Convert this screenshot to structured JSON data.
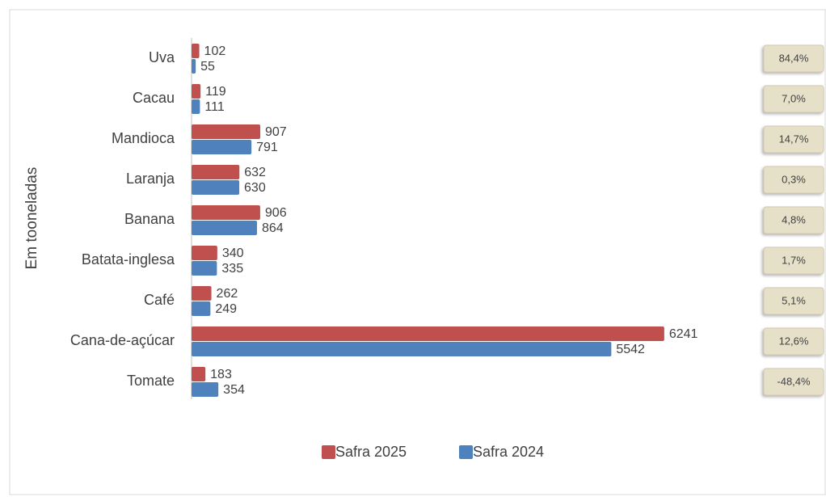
{
  "chart_data": {
    "type": "bar",
    "orientation": "horizontal",
    "y_label": "Em tooneladas",
    "categories": [
      "Uva",
      "Cacau",
      "Mandioca",
      "Laranja",
      "Banana",
      "Batata-inglesa",
      "Café",
      "Cana-de-açúcar",
      "Tomate"
    ],
    "series": [
      {
        "name": "Safra 2025",
        "color": "#c0504d",
        "values": [
          102,
          119,
          907,
          632,
          906,
          340,
          262,
          6241,
          183
        ]
      },
      {
        "name": "Safra 2024",
        "color": "#4f81bd",
        "values": [
          55,
          111,
          791,
          630,
          864,
          335,
          249,
          5542,
          354
        ]
      }
    ],
    "annotations": [
      "84,4%",
      "7,0%",
      "14,7%",
      "0,3%",
      "4,8%",
      "1,7%",
      "5,1%",
      "12,6%",
      "-48,4%"
    ],
    "xlim": [
      0,
      7000
    ],
    "legend": "bottom"
  }
}
